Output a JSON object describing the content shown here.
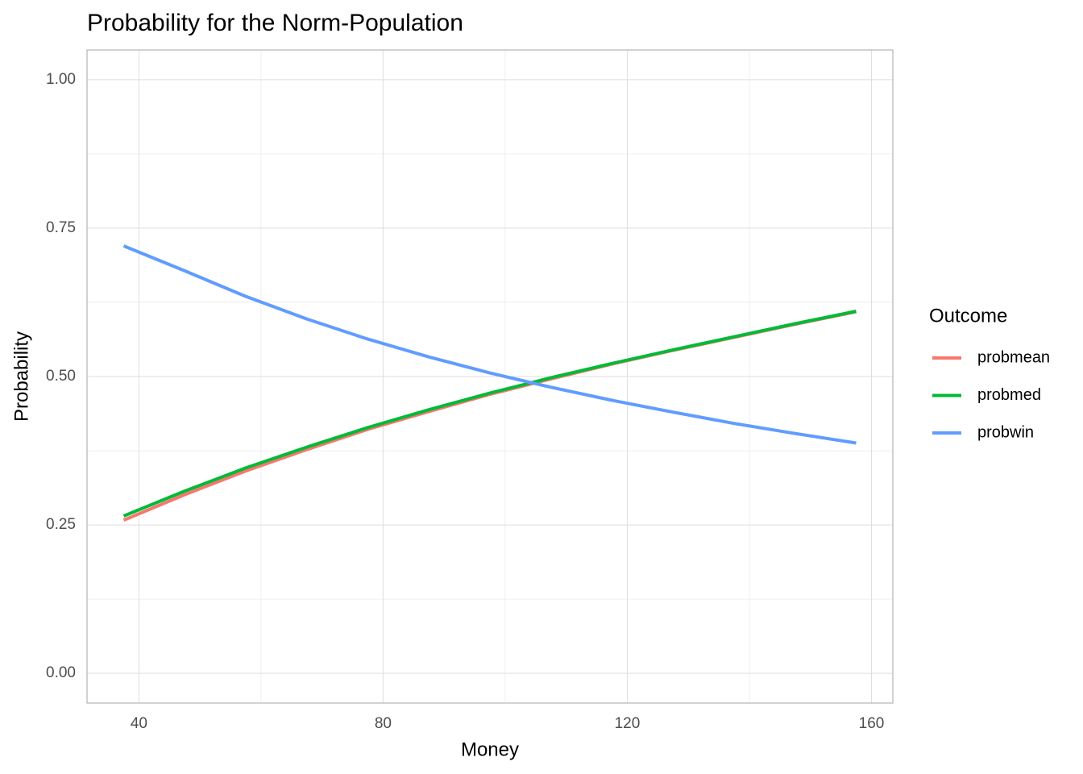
{
  "chart_data": {
    "type": "line",
    "title": "Probability for the Norm-Population",
    "x_label": "Money",
    "y_label": "Probability",
    "legend_title": "Outcome",
    "legend_position": "right",
    "grid": true,
    "x": [
      37.5,
      47.5,
      57.5,
      67.5,
      77.5,
      87.5,
      97.5,
      107.5,
      117.5,
      127.5,
      137.5,
      147.5,
      157.5
    ],
    "series": [
      {
        "name": "probmean",
        "color": "#F8766D",
        "values": [
          0.258,
          0.301,
          0.341,
          0.377,
          0.411,
          0.441,
          0.47,
          0.496,
          0.521,
          0.544,
          0.566,
          0.588,
          0.609
        ]
      },
      {
        "name": "probmed",
        "color": "#00BA38",
        "values": [
          0.265,
          0.307,
          0.346,
          0.381,
          0.414,
          0.444,
          0.472,
          0.498,
          0.522,
          0.545,
          0.567,
          0.589,
          0.61
        ]
      },
      {
        "name": "probwin",
        "color": "#619CFF",
        "values": [
          0.72,
          0.678,
          0.635,
          0.597,
          0.563,
          0.533,
          0.506,
          0.482,
          0.46,
          0.44,
          0.421,
          0.404,
          0.388
        ]
      }
    ],
    "xlim": [
      31.5,
      163.5
    ],
    "xticks": [
      40,
      80,
      120,
      160
    ],
    "ylim": [
      -0.05,
      1.05
    ],
    "yticks": [
      {
        "value": 0,
        "label": "0.00"
      },
      {
        "value": 0.25,
        "label": "0.25"
      },
      {
        "value": 0.5,
        "label": "0.50"
      },
      {
        "value": 0.75,
        "label": "0.75"
      },
      {
        "value": 1,
        "label": "1.00"
      }
    ]
  }
}
